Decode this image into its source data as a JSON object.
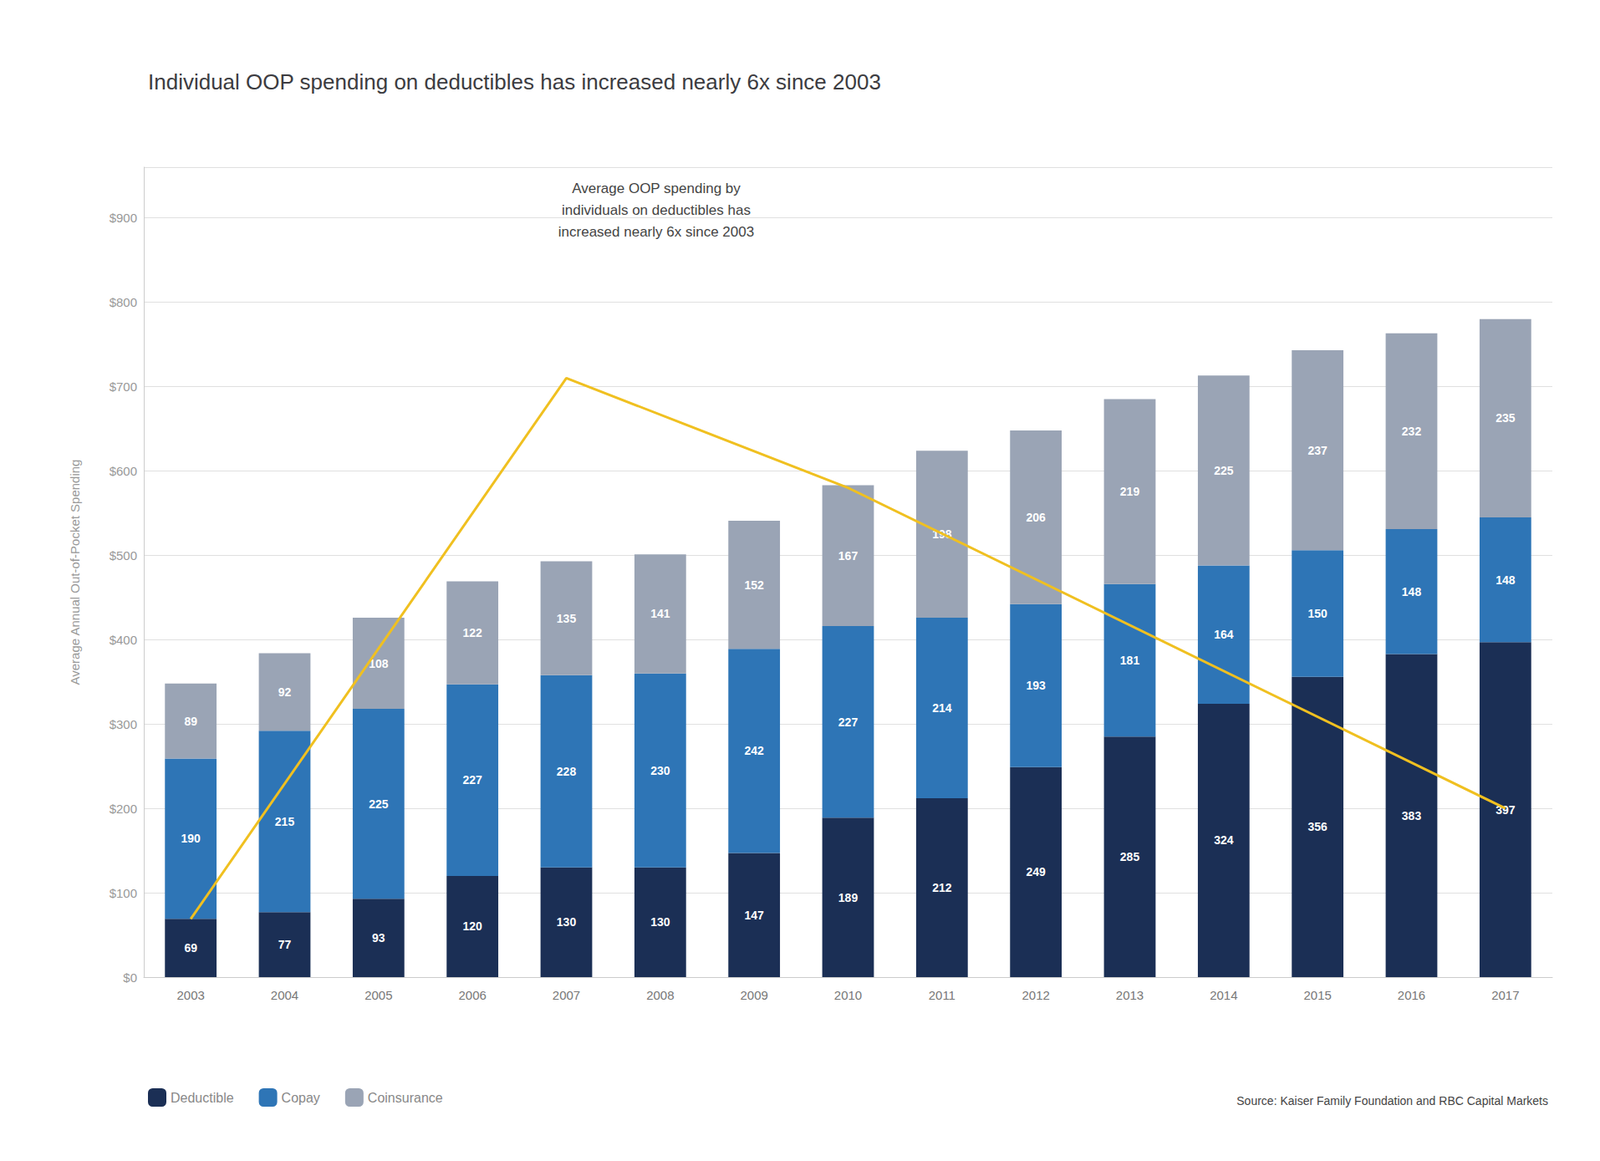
{
  "chart_data": {
    "type": "bar",
    "stacked": true,
    "title": "Individual OOP spending on deductibles has increased nearly 6x since 2003",
    "ylabel": "Average Annual Out-of-Pocket Spending",
    "annotation": "Average OOP spending by\nindividuals on deductibles has\nincreased nearly 6x since 2003",
    "source": "Source: Kaiser Family Foundation and RBC Capital Markets",
    "categories": [
      "2003",
      "2004",
      "2005",
      "2006",
      "2007",
      "2008",
      "2009",
      "2010",
      "2011",
      "2012",
      "2013",
      "2014",
      "2015",
      "2016",
      "2017"
    ],
    "series": [
      {
        "name": "Deductible",
        "color": "#1b2f55",
        "values": [
          69,
          77,
          93,
          120,
          130,
          130,
          147,
          189,
          212,
          249,
          285,
          324,
          356,
          383,
          397
        ]
      },
      {
        "name": "Copay",
        "color": "#2e75b6",
        "values": [
          190,
          215,
          225,
          227,
          228,
          230,
          242,
          227,
          214,
          193,
          181,
          164,
          150,
          148,
          148
        ]
      },
      {
        "name": "Coinsurance",
        "color": "#9aa4b5",
        "values": [
          89,
          92,
          108,
          122,
          135,
          141,
          152,
          167,
          198,
          206,
          219,
          225,
          237,
          232,
          235
        ]
      },
      {
        "type": "line",
        "color": "#f0c020",
        "x": [
          "2003",
          "2007",
          "2010",
          "2017"
        ],
        "values": [
          69,
          710,
          580,
          200
        ]
      }
    ],
    "ylim": [
      0,
      960
    ],
    "yticks": [
      {
        "value": 0,
        "label": "$0"
      },
      {
        "value": 100,
        "label": "$100"
      },
      {
        "value": 200,
        "label": "$200"
      },
      {
        "value": 300,
        "label": "$300"
      },
      {
        "value": 400,
        "label": "$400"
      },
      {
        "value": 500,
        "label": "$500"
      },
      {
        "value": 600,
        "label": "$600"
      },
      {
        "value": 700,
        "label": "$700"
      },
      {
        "value": 800,
        "label": "$800"
      },
      {
        "value": 900,
        "label": "$900"
      }
    ],
    "grid": true,
    "data_labels": true,
    "legend": "bottom"
  }
}
